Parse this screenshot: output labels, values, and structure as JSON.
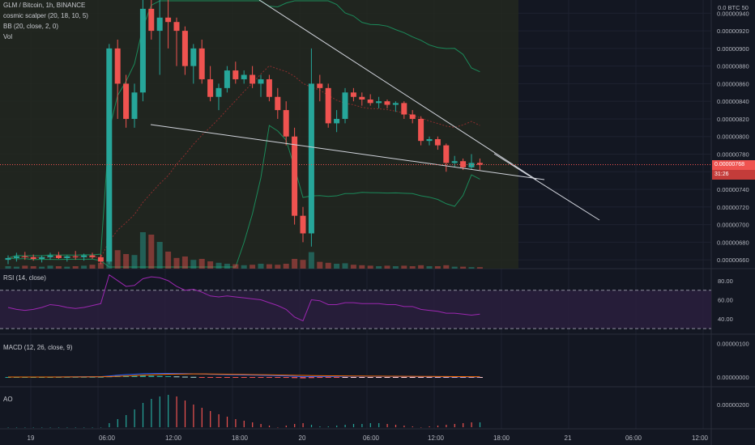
{
  "header": {
    "symbol_line": "GLM / Bitcoin, 1h, BINANCE",
    "indicator_1": "cosmic scalper (20, 18, 10, 5)",
    "indicator_2": "BB (20, close, 2, 0)",
    "indicator_3": "Vol"
  },
  "panes": {
    "rsi_label": "RSI (14, close)",
    "macd_label": "MACD (12, 26, close, 9)",
    "ao_label": "AO"
  },
  "price_axis": {
    "top_label": "0.0 BTC 50",
    "labels": [
      "0.00000940",
      "0.00000920",
      "0.00000900",
      "0.00000880",
      "0.00000860",
      "0.00000840",
      "0.00000820",
      "0.00000800",
      "0.00000780",
      "0.00000760",
      "0.00000740",
      "0.00000720",
      "0.00000700",
      "0.00000680",
      "0.00000660"
    ],
    "current_price": "0.00000768",
    "countdown": "31:26"
  },
  "rsi_axis": [
    "80.00",
    "60.00",
    "40.00"
  ],
  "macd_axis": [
    "0.00000100",
    "0.00000000"
  ],
  "ao_axis": [
    "0.00000200"
  ],
  "time_axis": [
    "19",
    "06:00",
    "12:00",
    "18:00",
    "20",
    "06:00",
    "12:00",
    "18:00",
    "21",
    "06:00",
    "12:00"
  ],
  "colors": {
    "background": "#131722",
    "up": "#26a69a",
    "down": "#ef5350",
    "rsi": "#9c27b0",
    "macd": "#2962ff",
    "signal": "#ff6d00",
    "bb": "#1b8a5a",
    "trendline": "#d1d4dc"
  },
  "chart_data": {
    "type": "candlestick",
    "symbol": "GLM / Bitcoin",
    "interval": "1h",
    "exchange": "BINANCE",
    "ylim": [
      6.5e-06,
      9.55e-06
    ],
    "candles": [
      {
        "o": 6.6e-06,
        "h": 6.65e-06,
        "l": 6.55e-06,
        "c": 6.62e-06,
        "v": 0.05
      },
      {
        "o": 6.62e-06,
        "h": 6.68e-06,
        "l": 6.58e-06,
        "c": 6.64e-06,
        "v": 0.04
      },
      {
        "o": 6.64e-06,
        "h": 6.69e-06,
        "l": 6.6e-06,
        "c": 6.63e-06,
        "v": 0.06
      },
      {
        "o": 6.63e-06,
        "h": 6.66e-06,
        "l": 6.59e-06,
        "c": 6.61e-06,
        "v": 0.05
      },
      {
        "o": 6.61e-06,
        "h": 6.65e-06,
        "l": 6.57e-06,
        "c": 6.63e-06,
        "v": 0.04
      },
      {
        "o": 6.63e-06,
        "h": 6.68e-06,
        "l": 6.6e-06,
        "c": 6.65e-06,
        "v": 0.06
      },
      {
        "o": 6.65e-06,
        "h": 6.69e-06,
        "l": 6.61e-06,
        "c": 6.62e-06,
        "v": 0.05
      },
      {
        "o": 6.62e-06,
        "h": 6.65e-06,
        "l": 6.58e-06,
        "c": 6.64e-06,
        "v": 0.04
      },
      {
        "o": 6.64e-06,
        "h": 6.7e-06,
        "l": 6.6e-06,
        "c": 6.63e-06,
        "v": 0.05
      },
      {
        "o": 6.63e-06,
        "h": 6.67e-06,
        "l": 6.59e-06,
        "c": 6.65e-06,
        "v": 0.06
      },
      {
        "o": 6.65e-06,
        "h": 6.68e-06,
        "l": 6.61e-06,
        "c": 6.63e-06,
        "v": 0.08
      },
      {
        "o": 6.63e-06,
        "h": 6.66e-06,
        "l": 6.55e-06,
        "c": 6.58e-06,
        "v": 0.12
      },
      {
        "o": 6.58e-06,
        "h": 9.05e-06,
        "l": 6.55e-06,
        "c": 9e-06,
        "v": 0.62
      },
      {
        "o": 9e-06,
        "h": 9.1e-06,
        "l": 8.2e-06,
        "c": 8.6e-06,
        "v": 0.38
      },
      {
        "o": 8.6e-06,
        "h": 8.7e-06,
        "l": 8.1e-06,
        "c": 8.2e-06,
        "v": 0.3
      },
      {
        "o": 8.2e-06,
        "h": 8.6e-06,
        "l": 8.1e-06,
        "c": 8.5e-06,
        "v": 0.28
      },
      {
        "o": 8.5e-06,
        "h": 9.55e-06,
        "l": 8.4e-06,
        "c": 9.45e-06,
        "v": 0.75
      },
      {
        "o": 9.45e-06,
        "h": 9.55e-06,
        "l": 9.1e-06,
        "c": 9.2e-06,
        "v": 0.7
      },
      {
        "o": 9.2e-06,
        "h": 9.55e-06,
        "l": 8.7e-06,
        "c": 9.35e-06,
        "v": 0.55
      },
      {
        "o": 9.35e-06,
        "h": 9.55e-06,
        "l": 9e-06,
        "c": 9.3e-06,
        "v": 0.35
      },
      {
        "o": 9.3e-06,
        "h": 9.35e-06,
        "l": 8.8e-06,
        "c": 9.2e-06,
        "v": 0.22
      },
      {
        "o": 9.2e-06,
        "h": 9.25e-06,
        "l": 8.7e-06,
        "c": 8.8e-06,
        "v": 0.25
      },
      {
        "o": 8.8e-06,
        "h": 9.05e-06,
        "l": 8.6e-06,
        "c": 9e-06,
        "v": 0.18
      },
      {
        "o": 9e-06,
        "h": 9.1e-06,
        "l": 8.6e-06,
        "c": 8.65e-06,
        "v": 0.2
      },
      {
        "o": 8.65e-06,
        "h": 8.8e-06,
        "l": 8.4e-06,
        "c": 8.45e-06,
        "v": 0.15
      },
      {
        "o": 8.45e-06,
        "h": 8.6e-06,
        "l": 8.3e-06,
        "c": 8.55e-06,
        "v": 0.12
      },
      {
        "o": 8.55e-06,
        "h": 8.8e-06,
        "l": 8.5e-06,
        "c": 8.75e-06,
        "v": 0.1
      },
      {
        "o": 8.75e-06,
        "h": 8.85e-06,
        "l": 8.6e-06,
        "c": 8.65e-06,
        "v": 0.09
      },
      {
        "o": 8.65e-06,
        "h": 8.75e-06,
        "l": 8.6e-06,
        "c": 8.7e-06,
        "v": 0.07
      },
      {
        "o": 8.7e-06,
        "h": 8.8e-06,
        "l": 8.55e-06,
        "c": 8.6e-06,
        "v": 0.08
      },
      {
        "o": 8.6e-06,
        "h": 8.7e-06,
        "l": 8.45e-06,
        "c": 8.65e-06,
        "v": 0.1
      },
      {
        "o": 8.65e-06,
        "h": 8.7e-06,
        "l": 8.4e-06,
        "c": 8.45e-06,
        "v": 0.09
      },
      {
        "o": 8.45e-06,
        "h": 8.55e-06,
        "l": 8.2e-06,
        "c": 8.3e-06,
        "v": 0.08
      },
      {
        "o": 8.3e-06,
        "h": 8.4e-06,
        "l": 7.9e-06,
        "c": 8e-06,
        "v": 0.1
      },
      {
        "o": 8e-06,
        "h": 8.1e-06,
        "l": 7e-06,
        "c": 7.1e-06,
        "v": 0.2
      },
      {
        "o": 7.1e-06,
        "h": 7.2e-06,
        "l": 6.8e-06,
        "c": 6.9e-06,
        "v": 0.18
      },
      {
        "o": 6.9e-06,
        "h": 9e-06,
        "l": 6.75e-06,
        "c": 8.6e-06,
        "v": 0.34
      },
      {
        "o": 8.6e-06,
        "h": 8.7e-06,
        "l": 8.4e-06,
        "c": 8.55e-06,
        "v": 0.14
      },
      {
        "o": 8.55e-06,
        "h": 8.6e-06,
        "l": 8.1e-06,
        "c": 8.15e-06,
        "v": 0.12
      },
      {
        "o": 8.15e-06,
        "h": 8.3e-06,
        "l": 8.05e-06,
        "c": 8.2e-06,
        "v": 0.1
      },
      {
        "o": 8.2e-06,
        "h": 8.55e-06,
        "l": 8.15e-06,
        "c": 8.5e-06,
        "v": 0.11
      },
      {
        "o": 8.5e-06,
        "h": 8.55e-06,
        "l": 8.4e-06,
        "c": 8.45e-06,
        "v": 0.08
      },
      {
        "o": 8.45e-06,
        "h": 8.5e-06,
        "l": 8.35e-06,
        "c": 8.42e-06,
        "v": 0.07
      },
      {
        "o": 8.42e-06,
        "h": 8.48e-06,
        "l": 8.35e-06,
        "c": 8.38e-06,
        "v": 0.06
      },
      {
        "o": 8.38e-06,
        "h": 8.45e-06,
        "l": 8.32e-06,
        "c": 8.4e-06,
        "v": 0.05
      },
      {
        "o": 8.4e-06,
        "h": 8.42e-06,
        "l": 8.32e-06,
        "c": 8.36e-06,
        "v": 0.06
      },
      {
        "o": 8.36e-06,
        "h": 8.4e-06,
        "l": 8.28e-06,
        "c": 8.38e-06,
        "v": 0.05
      },
      {
        "o": 8.38e-06,
        "h": 8.4e-06,
        "l": 8.2e-06,
        "c": 8.25e-06,
        "v": 0.06
      },
      {
        "o": 8.25e-06,
        "h": 8.3e-06,
        "l": 8.15e-06,
        "c": 8.2e-06,
        "v": 0.05
      },
      {
        "o": 8.2e-06,
        "h": 8.23e-06,
        "l": 7.9e-06,
        "c": 7.95e-06,
        "v": 0.07
      },
      {
        "o": 7.95e-06,
        "h": 8e-06,
        "l": 7.9e-06,
        "c": 7.97e-06,
        "v": 0.05
      },
      {
        "o": 7.97e-06,
        "h": 8e-06,
        "l": 7.85e-06,
        "c": 7.9e-06,
        "v": 0.05
      },
      {
        "o": 7.9e-06,
        "h": 7.92e-06,
        "l": 7.6e-06,
        "c": 7.7e-06,
        "v": 0.07
      },
      {
        "o": 7.7e-06,
        "h": 7.78e-06,
        "l": 7.65e-06,
        "c": 7.72e-06,
        "v": 0.04
      },
      {
        "o": 7.72e-06,
        "h": 7.75e-06,
        "l": 7.62e-06,
        "c": 7.65e-06,
        "v": 0.04
      },
      {
        "o": 7.65e-06,
        "h": 7.8e-06,
        "l": 7.63e-06,
        "c": 7.7e-06,
        "v": 0.03
      },
      {
        "o": 7.7e-06,
        "h": 7.75e-06,
        "l": 7.62e-06,
        "c": 7.68e-06,
        "v": 0.03
      }
    ],
    "rsi": [
      52,
      50,
      49,
      50,
      52,
      55,
      54,
      52,
      51,
      52,
      54,
      56,
      86,
      80,
      74,
      75,
      82,
      84,
      83,
      80,
      74,
      70,
      71,
      68,
      64,
      63,
      64,
      63,
      62,
      61,
      60,
      57,
      54,
      50,
      42,
      38,
      60,
      59,
      55,
      55,
      57,
      57,
      56,
      56,
      56,
      55,
      55,
      53,
      53,
      50,
      49,
      48,
      46,
      46,
      45,
      44,
      45
    ],
    "macd": [
      0,
      0,
      0,
      0,
      0,
      0,
      2e-09,
      4e-09,
      6e-09,
      8e-09,
      9e-09,
      1e-08,
      3e-08,
      5.5e-08,
      7.2e-08,
      8.5e-08,
      9.8e-08,
      1.05e-07,
      1.08e-07,
      1.08e-07,
      1.06e-07,
      1.02e-07,
      9.7e-08,
      9e-08,
      8.2e-08,
      7.5e-08,
      7e-08,
      6.5e-08,
      6e-08,
      5.6e-08,
      5.2e-08,
      4.6e-08,
      4e-08,
      3.2e-08,
      2e-08,
      8e-09,
      1.2e-08,
      1.5e-08,
      1.6e-08,
      1.8e-08,
      2e-08,
      2.1e-08,
      2.1e-08,
      2e-08,
      1.9e-08,
      1.8e-08,
      1.6e-08,
      1.4e-08,
      1.2e-08,
      1e-08,
      8e-09,
      7e-09,
      5e-09,
      4e-09,
      3e-09,
      2e-09,
      1e-09
    ],
    "signal": [
      0,
      0,
      0,
      0,
      0,
      0,
      1e-09,
      2e-09,
      3e-09,
      4e-09,
      5e-09,
      6e-09,
      1.2e-08,
      2e-08,
      3e-08,
      4.2e-08,
      5.5e-08,
      6.6e-08,
      7.5e-08,
      8.3e-08,
      8.8e-08,
      9.1e-08,
      9.2e-08,
      9.2e-08,
      9.1e-08,
      8.8e-08,
      8.5e-08,
      8.1e-08,
      7.7e-08,
      7.3e-08,
      6.9e-08,
      6.5e-08,
      6.1e-08,
      5.7e-08,
      5.2e-08,
      4.7e-08,
      4.3e-08,
      4e-08,
      3.7e-08,
      3.5e-08,
      3.3e-08,
      3.1e-08,
      3e-08,
      2.8e-08,
      2.7e-08,
      2.5e-08,
      2.4e-08,
      2.2e-08,
      2.1e-08,
      1.9e-08,
      1.8e-08,
      1.6e-08,
      1.5e-08,
      1.3e-08,
      1.2e-08,
      1e-08,
      9e-09
    ],
    "ao": [
      0,
      0,
      0,
      0,
      0,
      0,
      0,
      0,
      0,
      0,
      0,
      0,
      5e-08,
      1e-07,
      1.5e-07,
      2.2e-07,
      3e-07,
      3.5e-07,
      3.8e-07,
      4e-07,
      3.8e-07,
      3.3e-07,
      2.8e-07,
      2.4e-07,
      2e-07,
      1.6e-07,
      1.3e-07,
      1e-07,
      8e-08,
      6e-08,
      4e-08,
      2e-08,
      0,
      -2e-08,
      -4e-08,
      -5e-08,
      -3e-08,
      -1e-08,
      1e-08,
      2e-08,
      3e-08,
      4e-08,
      4e-08,
      5e-08,
      5e-08,
      4e-08,
      3e-08,
      2e-08,
      1e-08,
      0,
      -1e-08,
      -2e-08,
      -3e-08,
      -4e-08,
      -5e-08,
      -6e-08,
      -6e-08
    ]
  }
}
